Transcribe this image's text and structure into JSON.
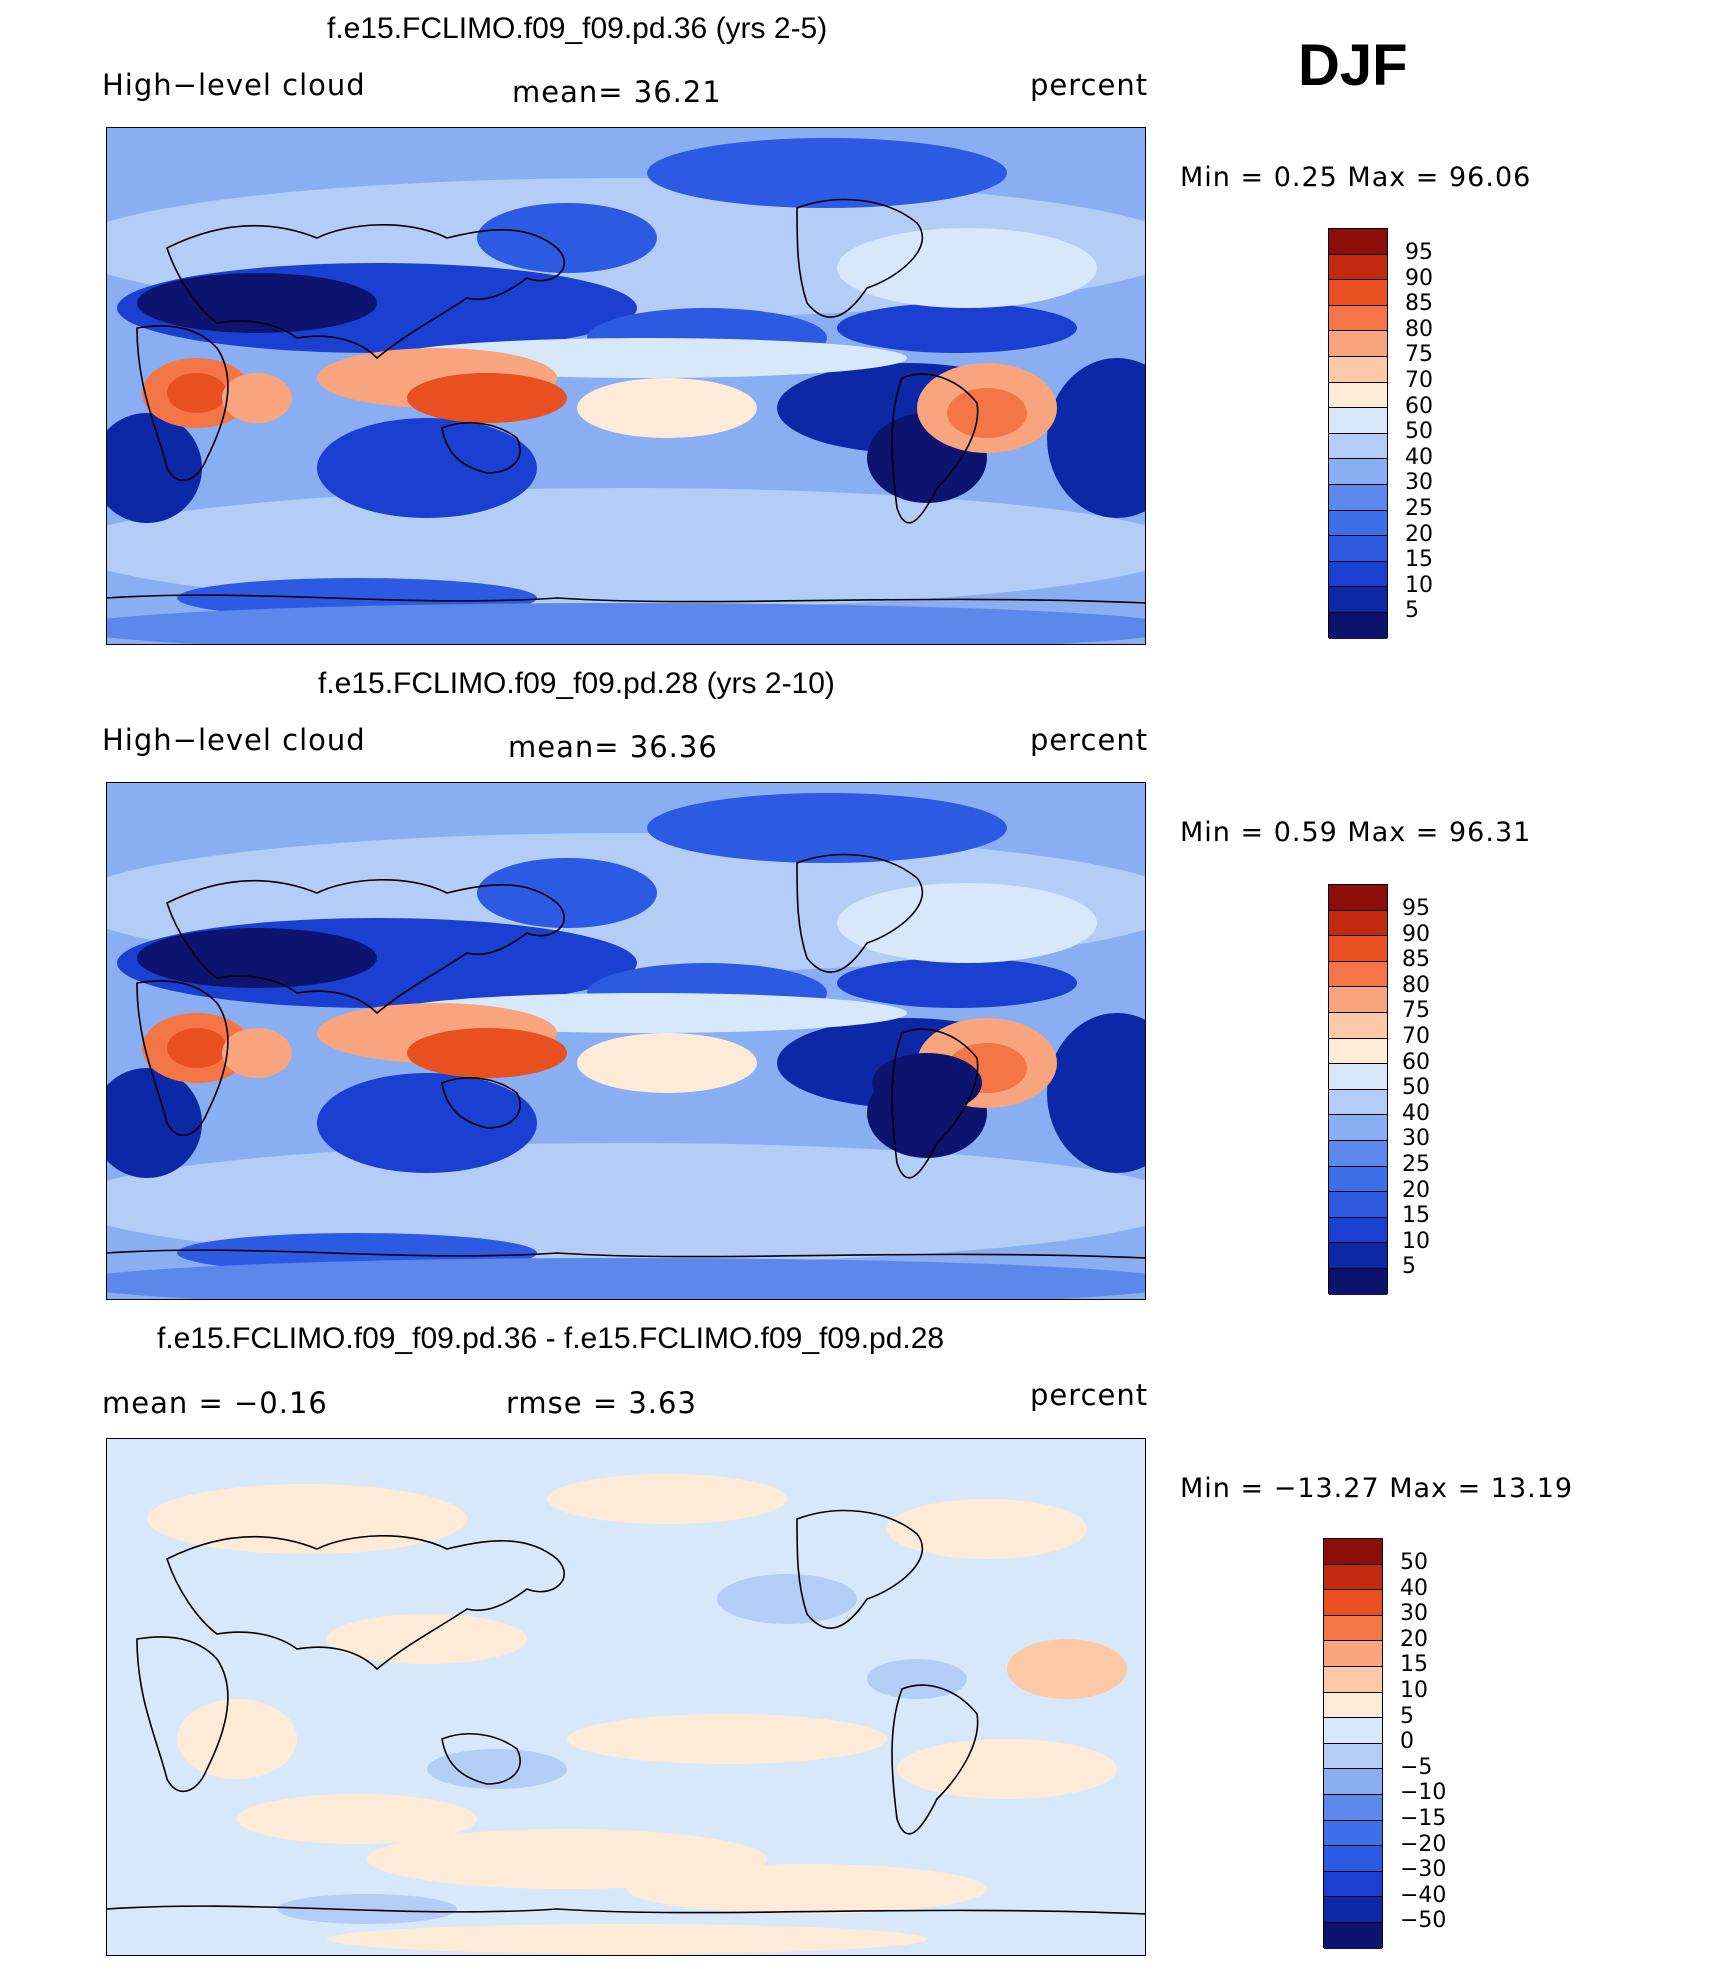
{
  "season": "DJF",
  "colors": {
    "abs_scale": [
      "#0c1470",
      "#0d28a6",
      "#1a3fd1",
      "#2c5ae3",
      "#3d6fe8",
      "#5c88eb",
      "#8aaef2",
      "#b4cdf6",
      "#d8e8fb",
      "#fdebd8",
      "#fcc8a6",
      "#f8a47e",
      "#f47646",
      "#e84f21",
      "#c42a10",
      "#8c0e0a"
    ],
    "diff_scale": [
      "#0c1470",
      "#0d28a6",
      "#1a3fd1",
      "#2c5ae3",
      "#3d6fe8",
      "#5c88eb",
      "#8aaef2",
      "#b4cdf6",
      "#d8e8fb",
      "#fdebd8",
      "#fcc8a6",
      "#f8a47e",
      "#f47646",
      "#e84f21",
      "#c42a10",
      "#8c0e0a"
    ]
  },
  "panels": [
    {
      "title": "f.e15.FCLIMO.f09_f09.pd.36 (yrs 2-5)",
      "left_label": "High−level cloud",
      "center_label": "mean=   36.21",
      "right_label": "percent",
      "minmax": "Min =    0.25  Max =    96.06",
      "levels": [
        "95",
        "90",
        "85",
        "80",
        "75",
        "70",
        "60",
        "50",
        "40",
        "30",
        "25",
        "20",
        "15",
        "10",
        "5"
      ],
      "field": "high_cloud_a"
    },
    {
      "title": "f.e15.FCLIMO.f09_f09.pd.28 (yrs 2-10)",
      "left_label": "High−level cloud",
      "center_label": "mean=   36.36",
      "right_label": "percent",
      "minmax": "Min =    0.59  Max =    96.31",
      "levels": [
        "95",
        "90",
        "85",
        "80",
        "75",
        "70",
        "60",
        "50",
        "40",
        "30",
        "25",
        "20",
        "15",
        "10",
        "5"
      ],
      "field": "high_cloud_b"
    },
    {
      "title": "f.e15.FCLIMO.f09_f09.pd.36 - f.e15.FCLIMO.f09_f09.pd.28",
      "left_label": "mean =    −0.16",
      "center_label": "rmse =     3.63",
      "right_label": "percent",
      "minmax": "Min = −13.27  Max =    13.19",
      "levels": [
        "50",
        "40",
        "30",
        "20",
        "15",
        "10",
        "5",
        "0",
        "−5",
        "−10",
        "−15",
        "−20",
        "−30",
        "−40",
        "−50"
      ],
      "field": "difference"
    }
  ]
}
